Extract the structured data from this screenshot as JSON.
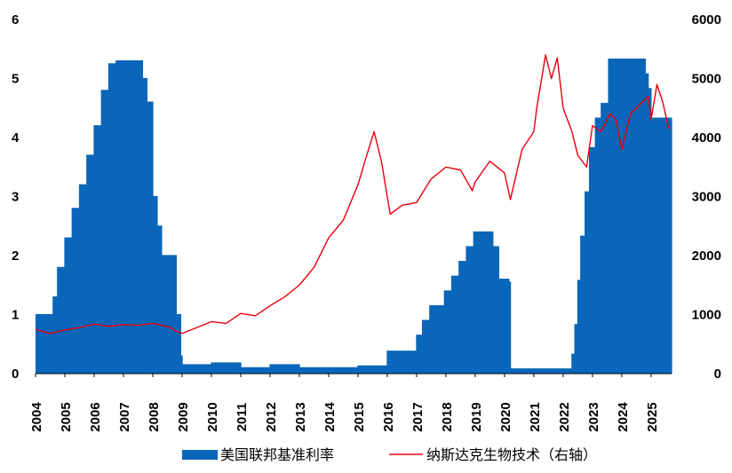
{
  "chart_data": {
    "type": "bar+line",
    "title": "",
    "xlabel": "",
    "ylabel": "",
    "legend_position": "bottom",
    "grid": false,
    "x_range": [
      2004,
      2025.7
    ],
    "y_left": {
      "min": 0,
      "max": 6,
      "ticks": [
        "0",
        "1",
        "2",
        "3",
        "4",
        "5",
        "6"
      ]
    },
    "y_right": {
      "min": 0,
      "max": 6000,
      "ticks": [
        "0",
        "1000",
        "2000",
        "3000",
        "4000",
        "5000",
        "6000"
      ]
    },
    "x_ticks": [
      "2004",
      "2005",
      "2006",
      "2007",
      "2008",
      "2009",
      "2010",
      "2011",
      "2012",
      "2013",
      "2014",
      "2015",
      "2016",
      "2017",
      "2018",
      "2019",
      "2020",
      "2021",
      "2022",
      "2023",
      "2024",
      "2025"
    ],
    "series": [
      {
        "name": "美国联邦基准利率",
        "axis": "left",
        "style": "bar",
        "color": "#0A66B8",
        "x": [
          2004.0,
          2004.4,
          2004.6,
          2004.75,
          2005.0,
          2005.25,
          2005.5,
          2005.75,
          2006.0,
          2006.25,
          2006.5,
          2006.75,
          2007.5,
          2007.65,
          2007.8,
          2008.0,
          2008.15,
          2008.3,
          2008.8,
          2008.95,
          2009.0,
          2010.0,
          2011.0,
          2012.0,
          2013.0,
          2014.0,
          2015.0,
          2015.95,
          2016.0,
          2016.9,
          2017.0,
          2017.2,
          2017.45,
          2017.95,
          2018.2,
          2018.45,
          2018.7,
          2018.95,
          2019.5,
          2019.6,
          2019.8,
          2020.15,
          2020.2,
          2022.2,
          2022.3,
          2022.4,
          2022.5,
          2022.6,
          2022.75,
          2022.9,
          2023.1,
          2023.3,
          2023.55,
          2024.7,
          2024.8,
          2024.9,
          2025.0,
          2025.5
        ],
        "values": [
          1.0,
          1.0,
          1.3,
          1.8,
          2.3,
          2.8,
          3.2,
          3.7,
          4.2,
          4.8,
          5.25,
          5.3,
          5.3,
          5.0,
          4.6,
          3.0,
          2.5,
          2.0,
          1.0,
          0.3,
          0.15,
          0.18,
          0.1,
          0.15,
          0.1,
          0.1,
          0.13,
          0.13,
          0.38,
          0.38,
          0.65,
          0.9,
          1.15,
          1.4,
          1.65,
          1.9,
          2.15,
          2.4,
          2.4,
          2.15,
          1.6,
          1.55,
          0.08,
          0.08,
          0.33,
          0.83,
          1.58,
          2.33,
          3.08,
          3.83,
          4.33,
          4.58,
          5.33,
          5.33,
          5.08,
          4.83,
          4.33,
          4.33
        ]
      },
      {
        "name": "纳斯达克生物技术（右轴）",
        "axis": "right",
        "style": "line",
        "color": "#E8000B",
        "x": [
          2004.0,
          2004.5,
          2005.0,
          2005.5,
          2006.0,
          2006.5,
          2007.0,
          2007.5,
          2008.0,
          2008.5,
          2008.8,
          2009.0,
          2009.5,
          2010.0,
          2010.5,
          2011.0,
          2011.5,
          2012.0,
          2012.5,
          2013.0,
          2013.5,
          2014.0,
          2014.5,
          2015.0,
          2015.3,
          2015.55,
          2015.8,
          2016.1,
          2016.5,
          2017.0,
          2017.5,
          2018.0,
          2018.5,
          2018.9,
          2019.0,
          2019.5,
          2020.0,
          2020.2,
          2020.6,
          2021.0,
          2021.1,
          2021.4,
          2021.6,
          2021.8,
          2022.0,
          2022.3,
          2022.5,
          2022.8,
          2023.0,
          2023.3,
          2023.6,
          2023.8,
          2024.0,
          2024.3,
          2024.7,
          2024.9,
          2025.0,
          2025.2,
          2025.4,
          2025.6
        ],
        "values": [
          750,
          680,
          740,
          780,
          840,
          800,
          830,
          820,
          850,
          800,
          720,
          680,
          780,
          880,
          850,
          1020,
          980,
          1150,
          1300,
          1500,
          1800,
          2300,
          2600,
          3200,
          3700,
          4100,
          3600,
          2700,
          2850,
          2900,
          3300,
          3500,
          3450,
          3100,
          3250,
          3600,
          3400,
          2950,
          3800,
          4100,
          4500,
          5400,
          5000,
          5350,
          4500,
          4100,
          3700,
          3500,
          4200,
          4100,
          4400,
          4300,
          3800,
          4400,
          4600,
          4700,
          4300,
          4900,
          4600,
          4150
        ]
      }
    ]
  }
}
